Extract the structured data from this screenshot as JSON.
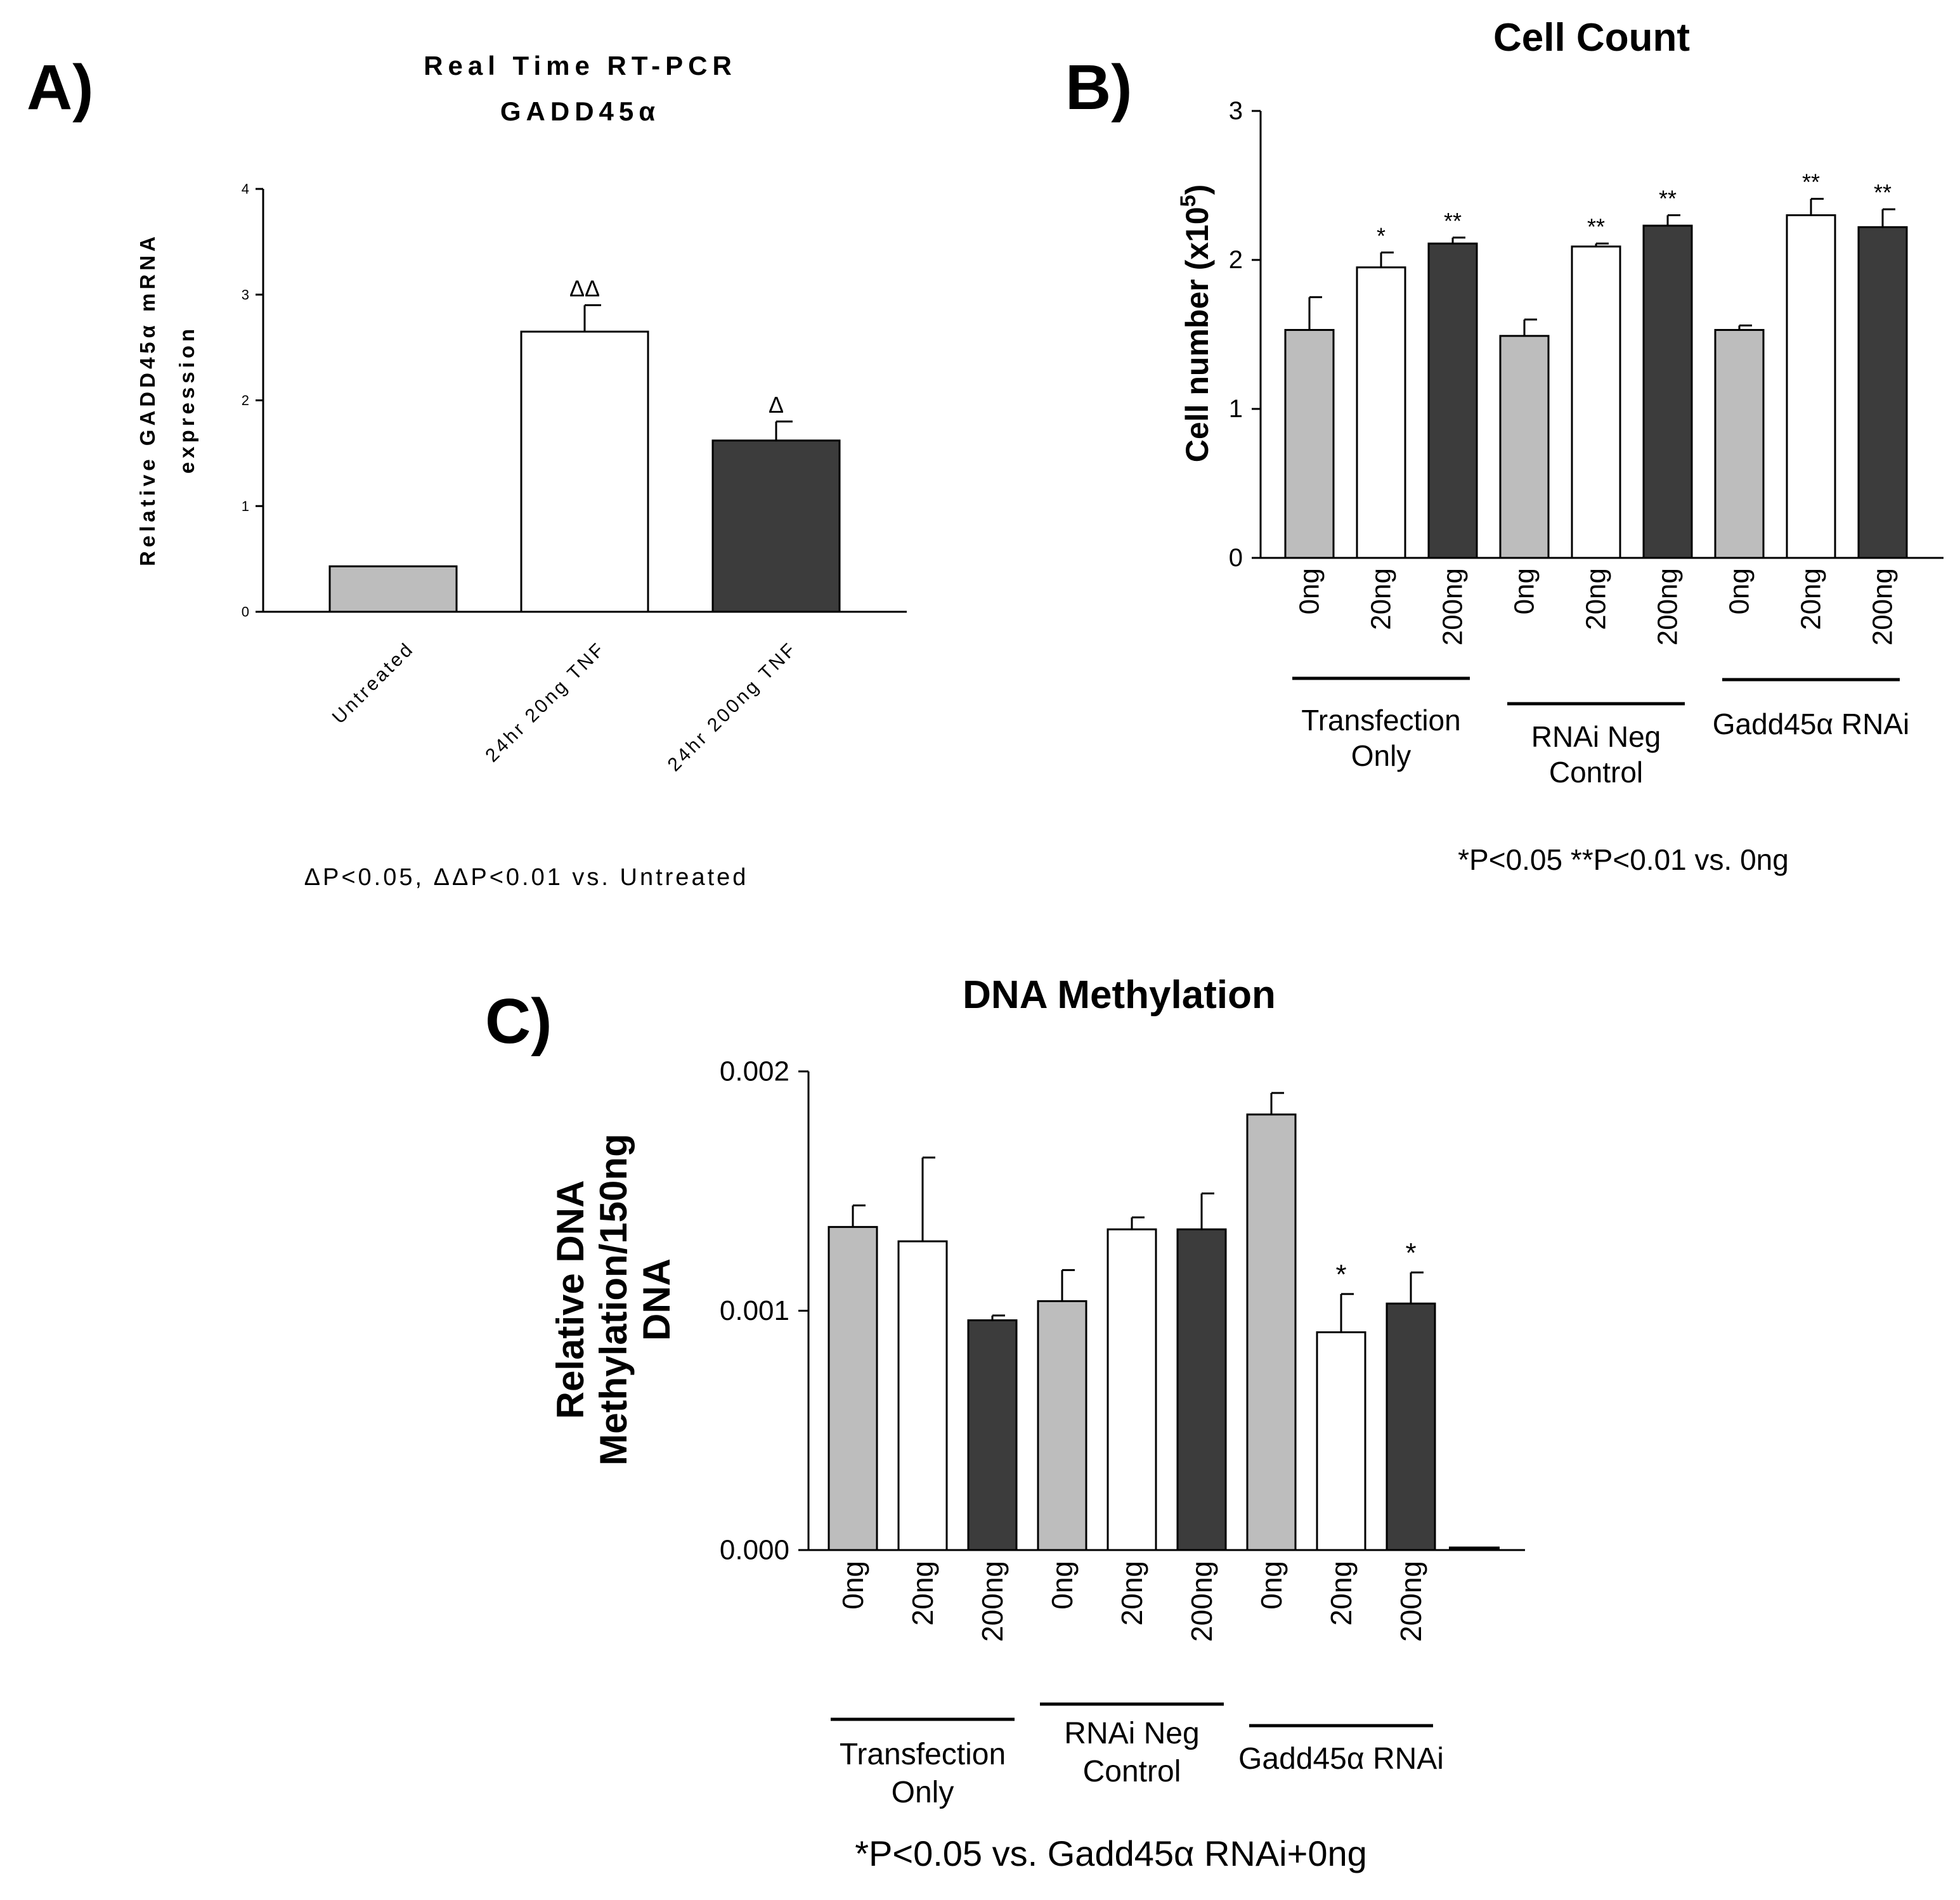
{
  "colors": {
    "light": "#bdbdbd",
    "white": "#ffffff",
    "dark": "#3c3c3c",
    "axis": "#000000"
  },
  "chart_data": [
    {
      "panel": "A)",
      "type": "bar",
      "title_lines": [
        "Real Time RT-PCR",
        "GADD45α"
      ],
      "ylabel_lines": [
        "Relative GADD45α mRNA",
        "expression"
      ],
      "categories": [
        "Untreated",
        "24hr 20ng TNF",
        "24hr 200ng TNF"
      ],
      "values": [
        0.43,
        2.65,
        1.62
      ],
      "errors": [
        0,
        0.25,
        0.18
      ],
      "bar_colors": [
        "light",
        "white",
        "dark"
      ],
      "significance": [
        "",
        "ΔΔ",
        "Δ"
      ],
      "ylim": [
        0,
        4
      ],
      "yticks": [
        {
          "value": 0,
          "label": "0"
        },
        {
          "value": 1,
          "label": "1"
        },
        {
          "value": 2,
          "label": "2"
        },
        {
          "value": 3,
          "label": "3"
        },
        {
          "value": 4,
          "label": "4"
        }
      ],
      "note": "ΔP<0.05, ΔΔP<0.01 vs. Untreated"
    },
    {
      "panel": "B)",
      "type": "bar",
      "title": "Cell Count",
      "ylabel": "Cell number (x10",
      "ylabel_sup": "5",
      "ylabel_close": ")",
      "categories": [
        "0ng",
        "20ng",
        "200ng",
        "0ng",
        "20ng",
        "200ng",
        "0ng",
        "20ng",
        "200ng"
      ],
      "values": [
        1.53,
        1.95,
        2.11,
        1.49,
        2.09,
        2.23,
        1.53,
        2.3,
        2.22
      ],
      "errors": [
        0.22,
        0.1,
        0.04,
        0.11,
        0.02,
        0.07,
        0.03,
        0.11,
        0.12
      ],
      "bar_colors": [
        "light",
        "white",
        "dark",
        "light",
        "white",
        "dark",
        "light",
        "white",
        "dark"
      ],
      "significance": [
        "",
        "*",
        "**",
        "",
        "**",
        "**",
        "",
        "**",
        "**"
      ],
      "groups": [
        {
          "lines": [
            "Transfection",
            "Only"
          ]
        },
        {
          "lines": [
            "RNAi Neg",
            "Control"
          ]
        },
        {
          "lines": [
            "Gadd45α RNAi"
          ]
        }
      ],
      "ylim": [
        0,
        3
      ],
      "yticks": [
        {
          "value": 0,
          "label": "0"
        },
        {
          "value": 1,
          "label": "1"
        },
        {
          "value": 2,
          "label": "2"
        },
        {
          "value": 3,
          "label": "3"
        }
      ],
      "note": "*P<0.05 **P<0.01 vs. 0ng"
    },
    {
      "panel": "C)",
      "type": "bar",
      "title": "DNA Methylation",
      "ylabel_lines": [
        "Relative DNA",
        "Methylation/150ng",
        "DNA"
      ],
      "categories": [
        "0ng",
        "20ng",
        "200ng",
        "0ng",
        "20ng",
        "200ng",
        "0ng",
        "20ng",
        "200ng"
      ],
      "values": [
        0.00135,
        0.00129,
        0.00096,
        0.00104,
        0.00134,
        0.00134,
        0.00182,
        0.00091,
        0.00103
      ],
      "errors": [
        9e-05,
        0.00035,
        2e-05,
        0.00013,
        5e-05,
        0.00015,
        9e-05,
        0.00016,
        0.00013
      ],
      "bar_colors": [
        "light",
        "white",
        "dark",
        "light",
        "white",
        "dark",
        "light",
        "white",
        "dark"
      ],
      "significance": [
        "",
        "",
        "",
        "",
        "",
        "",
        "",
        "*",
        "*"
      ],
      "groups": [
        {
          "lines": [
            "Transfection",
            "Only"
          ]
        },
        {
          "lines": [
            "RNAi Neg",
            "Control"
          ]
        },
        {
          "lines": [
            "Gadd45α RNAi"
          ]
        }
      ],
      "ylim": [
        0,
        0.002
      ],
      "yticks": [
        {
          "value": 0,
          "label": "0.000"
        },
        {
          "value": 0.001,
          "label": "0.001"
        },
        {
          "value": 0.002,
          "label": "0.002"
        }
      ],
      "note": "*P<0.05 vs. Gadd45α RNAi+0ng"
    }
  ]
}
